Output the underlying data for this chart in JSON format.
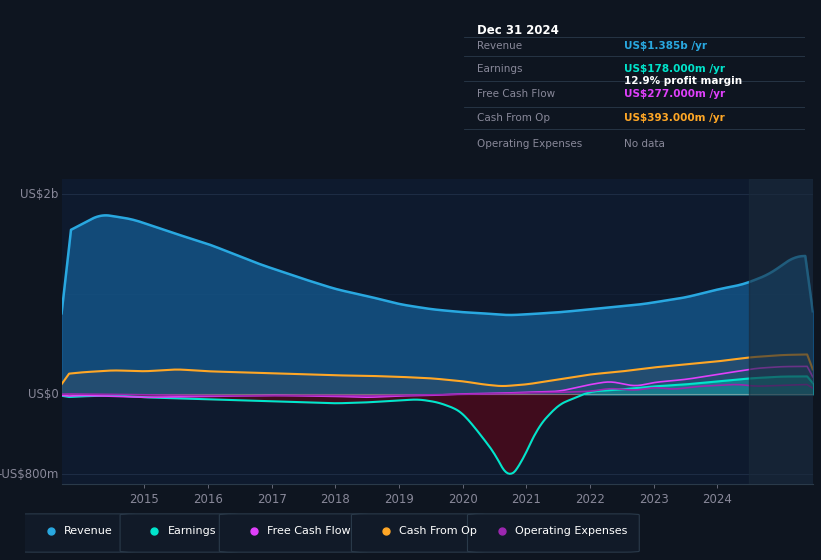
{
  "bg_color": "#0e1520",
  "chart_bg": "#0e1a2e",
  "title": "Dec 31 2024",
  "ytick_labels": [
    "US$2b",
    "US$0",
    "-US$800m"
  ],
  "xtick_labels": [
    "2015",
    "2016",
    "2017",
    "2018",
    "2019",
    "2020",
    "2021",
    "2022",
    "2023",
    "2024"
  ],
  "xtick_positions": [
    2015,
    2016,
    2017,
    2018,
    2019,
    2020,
    2021,
    2022,
    2023,
    2024
  ],
  "xlim": [
    2013.7,
    2025.5
  ],
  "ylim": [
    -900,
    2150
  ],
  "revenue_color": "#29a8e0",
  "earnings_color": "#00e5cc",
  "fcf_color": "#e040fb",
  "cashop_color": "#ffa726",
  "opex_color": "#9c27b0",
  "revenue_fill_color": "#1565a0",
  "earnings_neg_fill": "#4a0a1a",
  "legend_items": [
    "Revenue",
    "Earnings",
    "Free Cash Flow",
    "Cash From Op",
    "Operating Expenses"
  ],
  "legend_colors": [
    "#29a8e0",
    "#00e5cc",
    "#e040fb",
    "#ffa726",
    "#9c27b0"
  ],
  "info_revenue_color": "#29a8e0",
  "info_earnings_color": "#00e5cc",
  "info_fcf_color": "#e040fb",
  "info_cashop_color": "#ffa726",
  "info_nodata_color": "#888899",
  "grid_color": "#1e2d45",
  "zero_line_color": "#aaaaaa",
  "text_color": "#888899",
  "white": "#ffffff",
  "highlight_span_start": 2024.5,
  "highlight_span_end": 2025.5
}
